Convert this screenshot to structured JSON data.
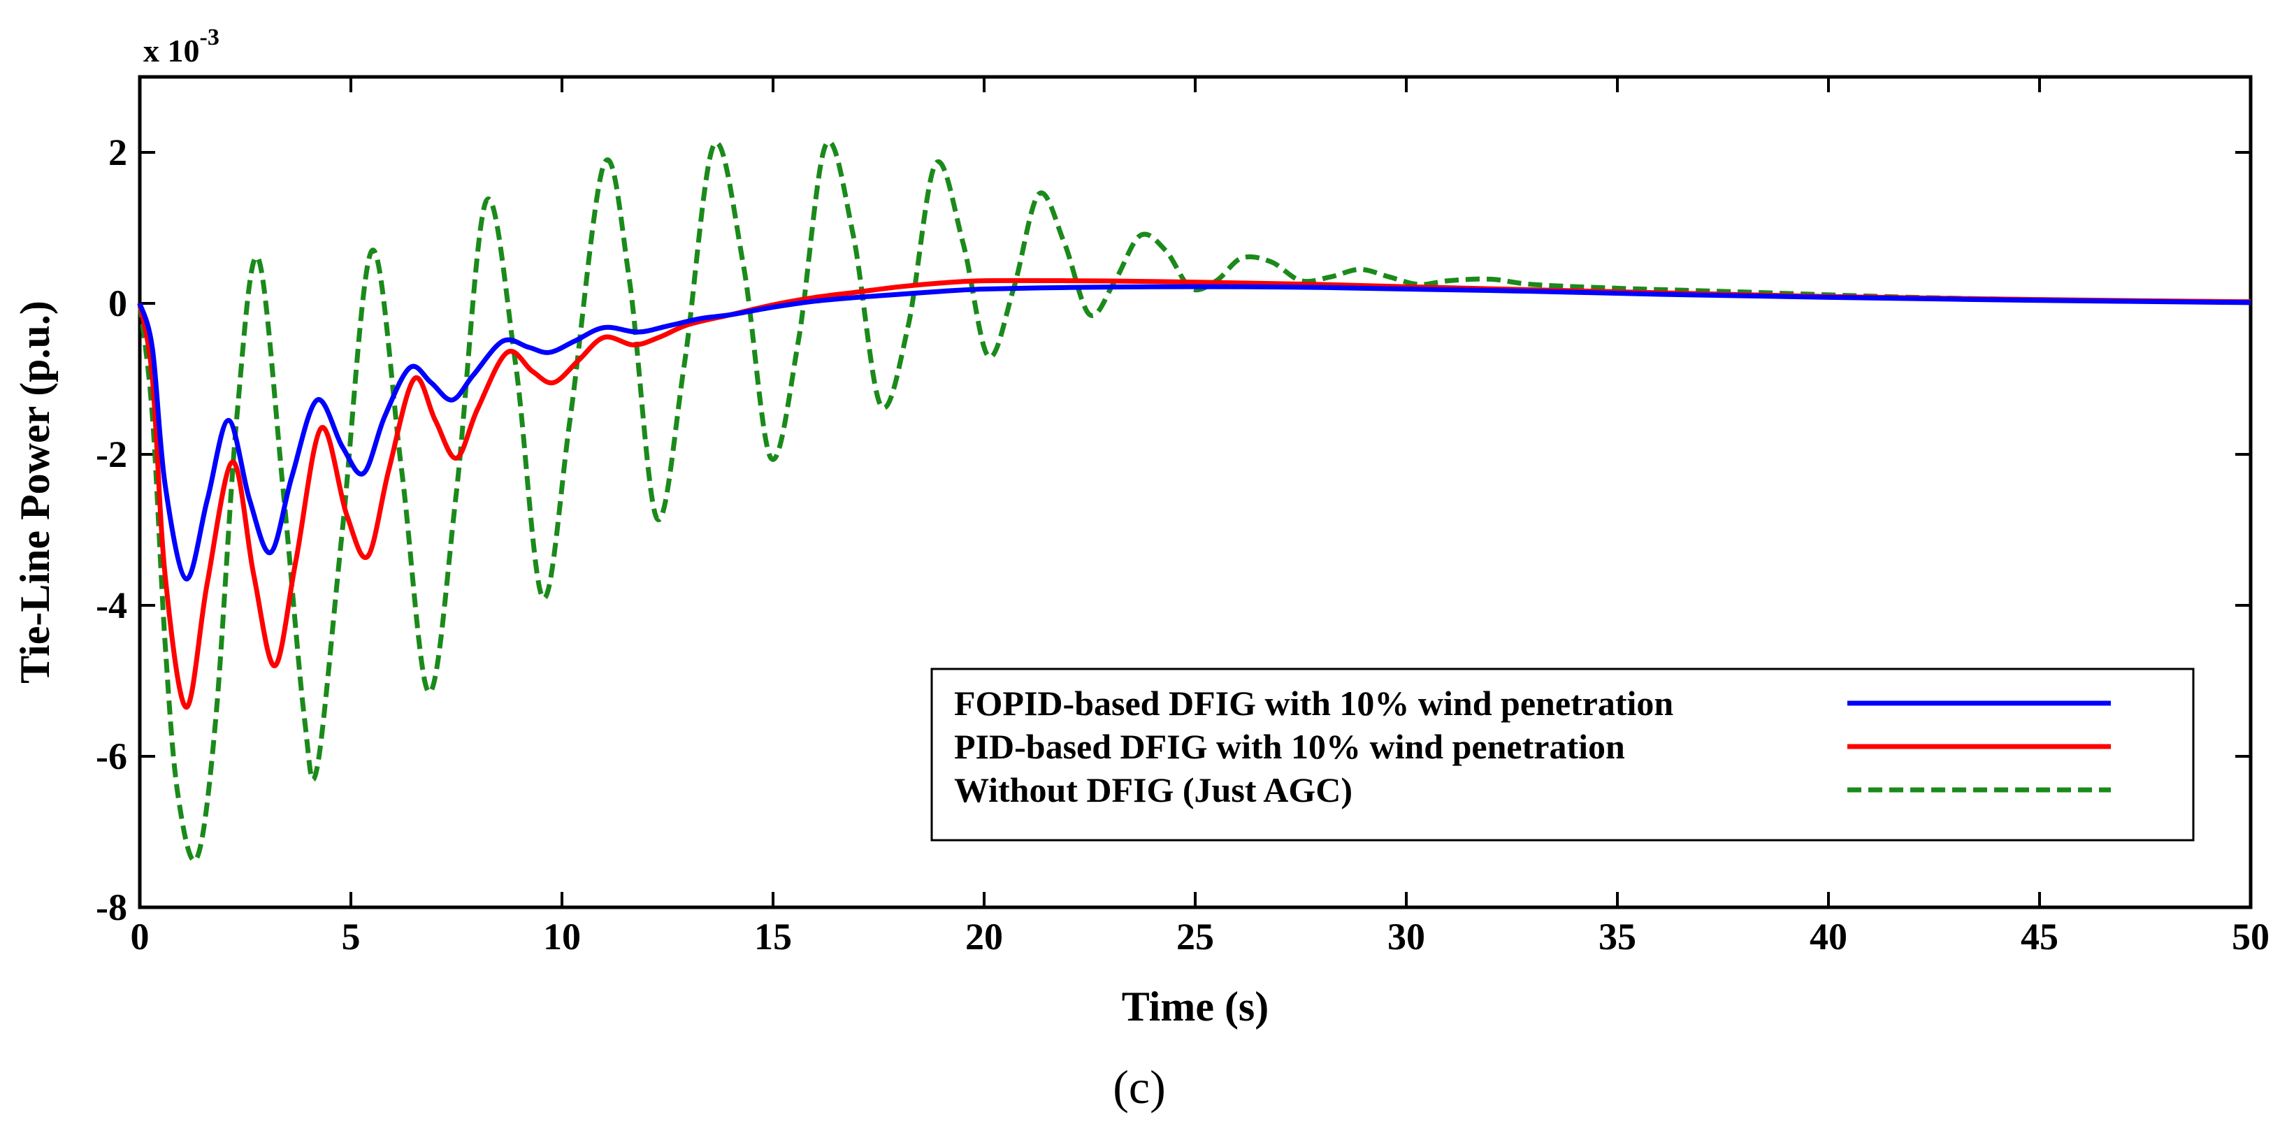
{
  "chart_data": {
    "type": "line",
    "title": "",
    "xlabel": "Time (s)",
    "ylabel": "Tie-Line Power (p.u.)",
    "y_scale_label": "x 10",
    "y_scale_exponent": "-3",
    "xlim": [
      0,
      50
    ],
    "ylim": [
      -8,
      3
    ],
    "xticks": [
      0,
      5,
      10,
      15,
      20,
      25,
      30,
      35,
      40,
      45,
      50
    ],
    "yticks": [
      -8,
      -6,
      -4,
      -2,
      0,
      2
    ],
    "caption": "(c)",
    "legend_position": "lower-right",
    "series": [
      {
        "name": "FOPID-based DFIG with 10% wind penetration",
        "color": "#0000ff",
        "dash": "solid",
        "x": [
          0,
          0.3,
          0.6,
          1.1,
          1.6,
          2.1,
          2.6,
          3.1,
          3.6,
          4.2,
          4.8,
          5.3,
          5.8,
          6.4,
          6.9,
          7.4,
          7.9,
          8.6,
          9.2,
          9.7,
          10.3,
          11.0,
          11.8,
          12.5,
          13.3,
          14.0,
          15.0,
          16.0,
          17.0,
          18.0,
          19.0,
          20.0,
          22.0,
          24.0,
          26.0,
          28.0,
          30.0,
          33.0,
          36.0,
          40.0,
          45.0,
          50.0
        ],
        "y": [
          0,
          -0.6,
          -2.4,
          -3.65,
          -2.6,
          -1.55,
          -2.6,
          -3.3,
          -2.3,
          -1.28,
          -1.9,
          -2.25,
          -1.5,
          -0.85,
          -1.05,
          -1.28,
          -0.95,
          -0.5,
          -0.58,
          -0.65,
          -0.5,
          -0.32,
          -0.38,
          -0.3,
          -0.2,
          -0.15,
          -0.05,
          0.03,
          0.08,
          0.12,
          0.16,
          0.19,
          0.21,
          0.22,
          0.22,
          0.21,
          0.19,
          0.16,
          0.12,
          0.08,
          0.04,
          0.01
        ]
      },
      {
        "name": "PID-based DFIG with 10% wind penetration",
        "color": "#ff0000",
        "dash": "solid",
        "x": [
          0,
          0.3,
          0.6,
          1.1,
          1.6,
          2.2,
          2.7,
          3.2,
          3.7,
          4.3,
          4.9,
          5.4,
          5.9,
          6.5,
          7.0,
          7.5,
          8.0,
          8.7,
          9.3,
          9.8,
          10.4,
          11.0,
          11.7,
          12.3,
          13.0,
          14.0,
          15.0,
          16.0,
          17.0,
          18.0,
          19.0,
          20.0,
          22.0,
          24.0,
          26.0,
          28.0,
          30.0,
          33.0,
          36.0,
          40.0,
          45.0,
          50.0
        ],
        "y": [
          0,
          -1.0,
          -3.6,
          -5.35,
          -3.7,
          -2.1,
          -3.6,
          -4.8,
          -3.4,
          -1.65,
          -2.8,
          -3.35,
          -2.2,
          -1.0,
          -1.55,
          -2.05,
          -1.4,
          -0.65,
          -0.9,
          -1.05,
          -0.75,
          -0.45,
          -0.55,
          -0.45,
          -0.28,
          -0.15,
          -0.02,
          0.08,
          0.15,
          0.22,
          0.27,
          0.3,
          0.3,
          0.29,
          0.27,
          0.25,
          0.22,
          0.18,
          0.14,
          0.09,
          0.05,
          0.02
        ]
      },
      {
        "name": "Without DFIG (Just AGC)",
        "color": "#1a8a1a",
        "dash": "dashed",
        "x": [
          0,
          0.3,
          0.6,
          0.9,
          1.35,
          1.8,
          2.3,
          2.8,
          3.4,
          3.9,
          4.2,
          4.8,
          5.5,
          6.2,
          6.85,
          7.5,
          8.2,
          8.9,
          9.55,
          10.2,
          11.0,
          11.6,
          12.25,
          12.9,
          13.6,
          14.3,
          14.95,
          15.6,
          16.25,
          16.9,
          17.55,
          18.2,
          18.85,
          19.5,
          20.1,
          20.7,
          21.3,
          21.9,
          22.5,
          23.1,
          23.7,
          24.3,
          24.9,
          25.5,
          26.1,
          26.8,
          27.5,
          28.2,
          28.9,
          29.6,
          30.3,
          31.0,
          32.0,
          33.0,
          35.0,
          38.0,
          42.0,
          46.0,
          50.0
        ],
        "y": [
          0,
          -1.5,
          -4.5,
          -6.5,
          -7.35,
          -5.5,
          -1.5,
          0.6,
          -2.5,
          -5.5,
          -6.15,
          -3.0,
          0.7,
          -2.2,
          -5.15,
          -2.5,
          1.35,
          -0.8,
          -3.9,
          -1.5,
          1.85,
          0.3,
          -2.85,
          -0.8,
          2.1,
          0.5,
          -2.05,
          -0.5,
          2.1,
          0.9,
          -1.35,
          -0.3,
          1.85,
          0.8,
          -0.7,
          0.2,
          1.45,
          0.8,
          -0.15,
          0.3,
          0.9,
          0.7,
          0.2,
          0.3,
          0.6,
          0.55,
          0.3,
          0.35,
          0.45,
          0.35,
          0.25,
          0.3,
          0.32,
          0.25,
          0.2,
          0.15,
          0.08,
          0.04,
          0.02
        ]
      }
    ]
  }
}
